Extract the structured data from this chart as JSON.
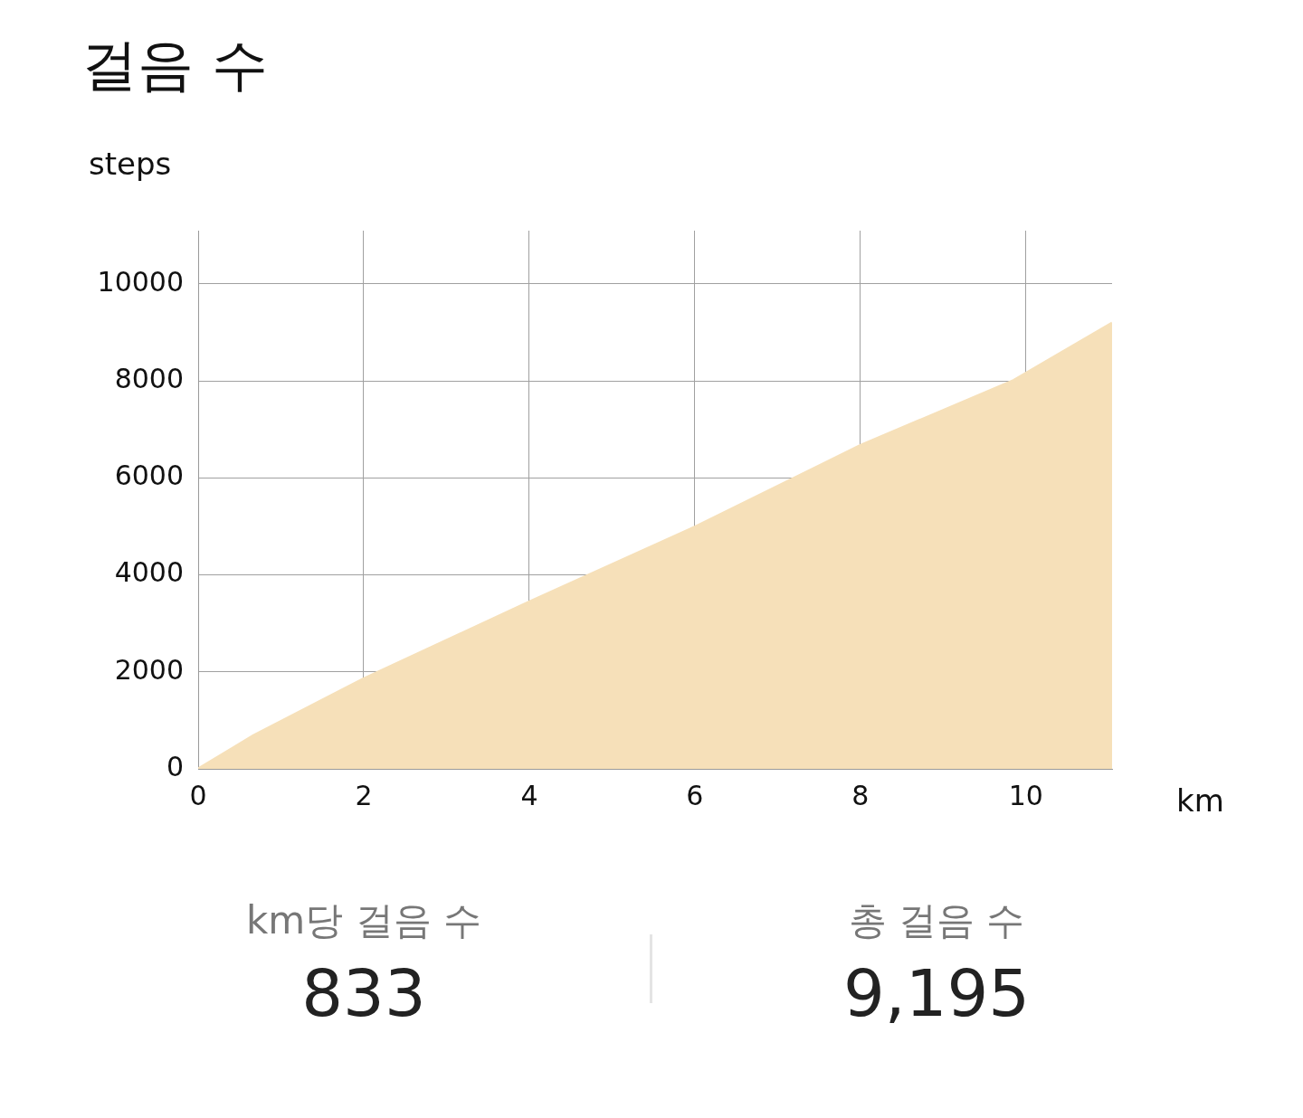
{
  "chart_data": {
    "type": "area",
    "title": "걸음 수",
    "ylabel": "steps",
    "xlabel": "km",
    "x": [
      0,
      0.67,
      2,
      4,
      6,
      8,
      9.85,
      10,
      11.04
    ],
    "series": [
      {
        "color": "#f6e0b9",
        "values": [
          0,
          690,
          1860,
          3445,
          4990,
          6670,
          8010,
          8160,
          9195
        ]
      }
    ],
    "xlim": [
      0,
      11.04
    ],
    "xticks": [
      0,
      2,
      4,
      6,
      8,
      10
    ],
    "ylim": [
      0,
      11100
    ],
    "yticks": [
      0,
      2000,
      4000,
      6000,
      8000,
      10000
    ],
    "grid": true,
    "marker": "none",
    "annotations": [
      "km당 걸음 수",
      "833",
      "총 걸음 수",
      "9,195"
    ]
  }
}
